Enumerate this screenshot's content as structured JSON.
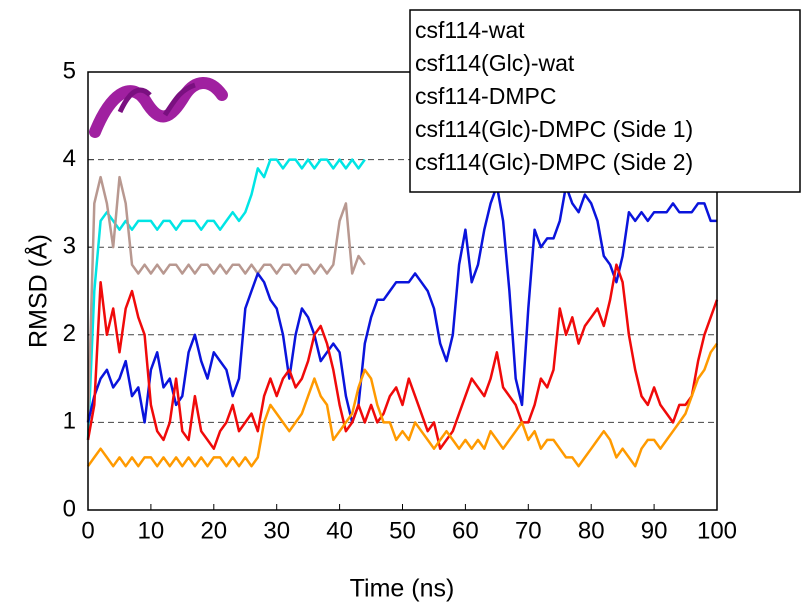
{
  "chart_data": {
    "type": "line",
    "x_label": "Time (ns)",
    "y_label": "RMSD (Å)",
    "x": [
      0,
      1,
      2,
      3,
      4,
      5,
      6,
      7,
      8,
      9,
      10,
      11,
      12,
      13,
      14,
      15,
      16,
      17,
      18,
      19,
      20,
      21,
      22,
      23,
      24,
      25,
      26,
      27,
      28,
      29,
      30,
      31,
      32,
      33,
      34,
      35,
      36,
      37,
      38,
      39,
      40,
      41,
      42,
      43,
      44,
      45,
      46,
      47,
      48,
      49,
      50,
      51,
      52,
      53,
      54,
      55,
      56,
      57,
      58,
      59,
      60,
      61,
      62,
      63,
      64,
      65,
      66,
      67,
      68,
      69,
      70,
      71,
      72,
      73,
      74,
      75,
      76,
      77,
      78,
      79,
      80,
      81,
      82,
      83,
      84,
      85,
      86,
      87,
      88,
      89,
      90,
      91,
      92,
      93,
      94,
      95,
      96,
      97,
      98,
      99,
      100
    ],
    "xlim": [
      0,
      100
    ],
    "xticks": [
      0,
      10,
      20,
      30,
      40,
      50,
      60,
      70,
      80,
      90,
      100
    ],
    "ylim": [
      0,
      5
    ],
    "yticks": [
      0,
      1,
      2,
      3,
      4,
      5
    ],
    "grid": true,
    "legend": "top-right",
    "series": [
      {
        "name": "csf114-wat",
        "color": "#00e5e5",
        "values": [
          0.8,
          2.5,
          3.3,
          3.4,
          3.3,
          3.2,
          3.3,
          3.2,
          3.3,
          3.3,
          3.3,
          3.2,
          3.3,
          3.3,
          3.2,
          3.3,
          3.3,
          3.3,
          3.2,
          3.3,
          3.3,
          3.2,
          3.3,
          3.4,
          3.3,
          3.4,
          3.6,
          3.9,
          3.8,
          4.0,
          4.0,
          3.9,
          4.0,
          4.0,
          3.9,
          4.0,
          3.9,
          4.0,
          4.0,
          3.9,
          4.0,
          3.9,
          4.0,
          3.9,
          4.0,
          null,
          null,
          null,
          null,
          null,
          null,
          null,
          null,
          null,
          null,
          null,
          null,
          null,
          null,
          null,
          null,
          null,
          null,
          null,
          null,
          null,
          null,
          null,
          null,
          null,
          null,
          null,
          null,
          null,
          null,
          null,
          null,
          null,
          null,
          null,
          null,
          null,
          null,
          null,
          null,
          null,
          null,
          null,
          null,
          null,
          null,
          null,
          null,
          null,
          null,
          null,
          null,
          null,
          null,
          null,
          null
        ]
      },
      {
        "name": "csf114(Glc)-wat",
        "color": "#b89890",
        "values": [
          1.0,
          3.5,
          3.8,
          3.5,
          3.0,
          3.8,
          3.5,
          2.8,
          2.7,
          2.8,
          2.7,
          2.8,
          2.7,
          2.8,
          2.8,
          2.7,
          2.8,
          2.7,
          2.8,
          2.8,
          2.7,
          2.8,
          2.7,
          2.8,
          2.8,
          2.7,
          2.8,
          2.7,
          2.8,
          2.8,
          2.7,
          2.8,
          2.8,
          2.7,
          2.8,
          2.8,
          2.7,
          2.8,
          2.7,
          2.8,
          3.3,
          3.5,
          2.7,
          2.9,
          2.8,
          null,
          null,
          null,
          null,
          null,
          null,
          null,
          null,
          null,
          null,
          null,
          null,
          null,
          null,
          null,
          null,
          null,
          null,
          null,
          null,
          null,
          null,
          null,
          null,
          null,
          null,
          null,
          null,
          null,
          null,
          null,
          null,
          null,
          null,
          null,
          null,
          null,
          null,
          null,
          null,
          null,
          null,
          null,
          null,
          null,
          null,
          null,
          null,
          null,
          null,
          null,
          null,
          null,
          null,
          null,
          null
        ]
      },
      {
        "name": "csf114-DMPC",
        "color": "#0a14dc",
        "values": [
          1.0,
          1.3,
          1.5,
          1.6,
          1.4,
          1.5,
          1.7,
          1.3,
          1.4,
          1.0,
          1.6,
          1.8,
          1.4,
          1.5,
          1.2,
          1.3,
          1.8,
          2.0,
          1.7,
          1.5,
          1.8,
          1.7,
          1.6,
          1.3,
          1.5,
          2.3,
          2.5,
          2.7,
          2.6,
          2.4,
          2.3,
          2.0,
          1.5,
          2.0,
          2.3,
          2.2,
          2.0,
          1.7,
          1.8,
          1.9,
          1.8,
          1.3,
          1.0,
          1.2,
          1.9,
          2.2,
          2.4,
          2.4,
          2.5,
          2.6,
          2.6,
          2.6,
          2.7,
          2.6,
          2.5,
          2.3,
          1.9,
          1.7,
          2.0,
          2.8,
          3.2,
          2.6,
          2.8,
          3.2,
          3.5,
          3.7,
          3.3,
          2.5,
          1.5,
          1.2,
          2.3,
          3.2,
          3.0,
          3.1,
          3.1,
          3.3,
          3.7,
          3.5,
          3.4,
          3.6,
          3.5,
          3.3,
          2.9,
          2.8,
          2.6,
          2.9,
          3.4,
          3.3,
          3.4,
          3.3,
          3.4,
          3.4,
          3.4,
          3.5,
          3.4,
          3.4,
          3.4,
          3.5,
          3.5,
          3.3,
          3.3
        ]
      },
      {
        "name": "csf114(Glc)-DMPC (Side 1)",
        "color": "#f00a0a",
        "values": [
          0.8,
          1.2,
          2.6,
          2.0,
          2.3,
          1.8,
          2.3,
          2.5,
          2.2,
          2.0,
          1.2,
          0.9,
          0.8,
          1.0,
          1.5,
          0.9,
          0.8,
          1.3,
          0.9,
          0.8,
          0.7,
          0.9,
          1.0,
          1.2,
          0.9,
          1.0,
          1.1,
          0.9,
          1.3,
          1.5,
          1.3,
          1.5,
          1.6,
          1.4,
          1.5,
          1.7,
          2.0,
          2.1,
          1.9,
          1.6,
          1.2,
          0.9,
          1.0,
          1.2,
          1.0,
          1.2,
          1.0,
          1.1,
          1.3,
          1.4,
          1.2,
          1.5,
          1.3,
          1.1,
          0.9,
          1.0,
          0.7,
          0.8,
          0.9,
          1.1,
          1.3,
          1.5,
          1.4,
          1.3,
          1.5,
          1.8,
          1.4,
          1.3,
          1.2,
          1.0,
          1.0,
          1.2,
          1.5,
          1.4,
          1.6,
          2.3,
          2.0,
          2.2,
          1.9,
          2.1,
          2.2,
          2.3,
          2.1,
          2.4,
          2.8,
          2.6,
          2.0,
          1.6,
          1.3,
          1.2,
          1.4,
          1.2,
          1.1,
          1.0,
          1.2,
          1.2,
          1.3,
          1.7,
          2.0,
          2.2,
          2.4
        ]
      },
      {
        "name": "csf114(Glc)-DMPC (Side 2)",
        "color": "#ff9a00",
        "values": [
          0.5,
          0.6,
          0.7,
          0.6,
          0.5,
          0.6,
          0.5,
          0.6,
          0.5,
          0.6,
          0.6,
          0.5,
          0.6,
          0.5,
          0.6,
          0.5,
          0.6,
          0.5,
          0.6,
          0.5,
          0.6,
          0.6,
          0.5,
          0.6,
          0.5,
          0.6,
          0.5,
          0.6,
          1.0,
          1.2,
          1.1,
          1.0,
          0.9,
          1.0,
          1.1,
          1.3,
          1.5,
          1.3,
          1.2,
          0.8,
          0.9,
          1.0,
          1.1,
          1.4,
          1.6,
          1.5,
          1.2,
          1.0,
          1.0,
          0.8,
          0.9,
          0.8,
          1.0,
          0.9,
          0.8,
          0.7,
          0.8,
          0.9,
          0.8,
          0.7,
          0.8,
          0.7,
          0.8,
          0.7,
          0.9,
          0.8,
          0.7,
          0.8,
          0.9,
          1.0,
          0.8,
          0.9,
          0.7,
          0.8,
          0.8,
          0.7,
          0.6,
          0.6,
          0.5,
          0.6,
          0.7,
          0.8,
          0.9,
          0.8,
          0.6,
          0.7,
          0.6,
          0.5,
          0.7,
          0.8,
          0.8,
          0.7,
          0.8,
          0.9,
          1.0,
          1.1,
          1.3,
          1.5,
          1.6,
          1.8,
          1.9
        ]
      }
    ]
  }
}
